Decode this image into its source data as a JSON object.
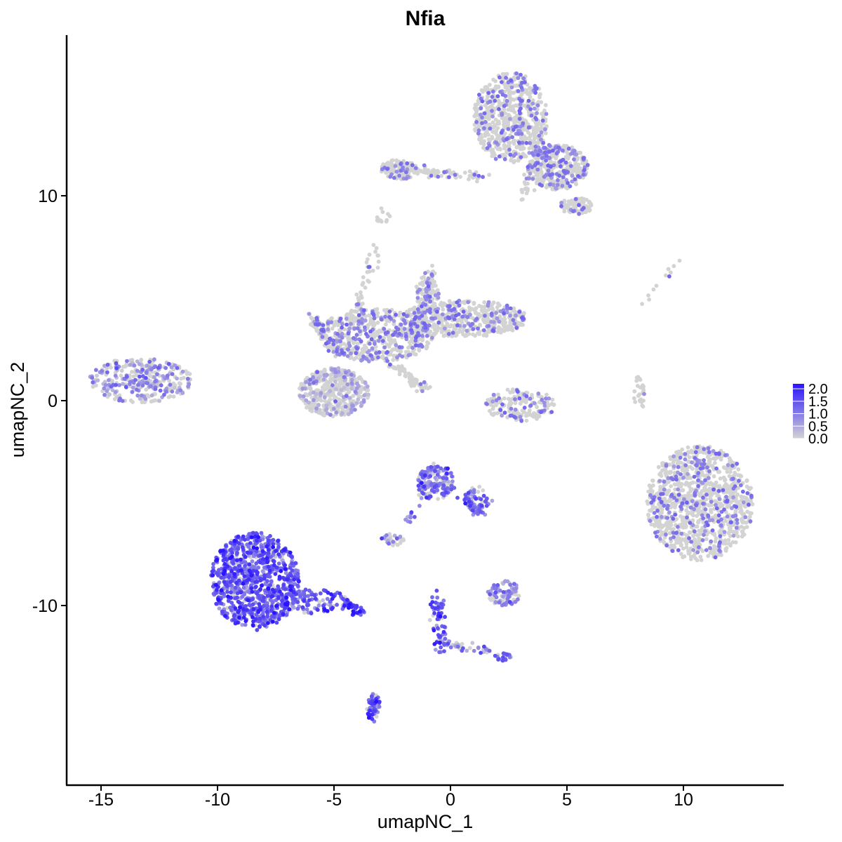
{
  "chart_data": {
    "type": "scatter",
    "title": "Nfia",
    "xlabel": "umapNC_1",
    "ylabel": "umapNC_2",
    "xlim": [
      -16.5,
      14.5
    ],
    "ylim": [
      -18.5,
      17.5
    ],
    "x_ticks": [
      -15,
      -10,
      -5,
      0,
      5,
      10
    ],
    "y_ticks": [
      -10,
      0,
      10
    ],
    "grid": false,
    "legend": {
      "position": "right",
      "title": "",
      "ticks": [
        2.0,
        1.5,
        1.0,
        0.5,
        0.0
      ],
      "tick_labels": [
        "2.0",
        "1.5",
        "1.0",
        "0.5",
        "0.0"
      ],
      "range": [
        0,
        2.2
      ],
      "color_low": "#d3d3d3",
      "color_high": "#2a14ff"
    },
    "clusters": [
      {
        "cx": -13.3,
        "cy": 1.0,
        "rx": 2.2,
        "ry": 1.1,
        "n": 320,
        "expr_mean": 0.55
      },
      {
        "cx": -8.4,
        "cy": -8.8,
        "rx": 1.9,
        "ry": 2.4,
        "n": 950,
        "expr_mean": 1.3
      },
      {
        "cx": -5.8,
        "cy": -9.8,
        "rx": 1.5,
        "ry": 0.6,
        "n": 110,
        "expr_mean": 1.2
      },
      {
        "cx": -3.3,
        "cy": -15.0,
        "rx": 0.3,
        "ry": 0.7,
        "n": 55,
        "expr_mean": 1.3
      },
      {
        "cx": -0.6,
        "cy": -4.0,
        "rx": 0.8,
        "ry": 0.9,
        "n": 150,
        "expr_mean": 0.9
      },
      {
        "cx": 1.2,
        "cy": -4.8,
        "rx": 0.6,
        "ry": 0.6,
        "n": 40,
        "expr_mean": 1.0
      },
      {
        "cx": -2.5,
        "cy": -6.8,
        "rx": 0.5,
        "ry": 0.3,
        "n": 30,
        "expr_mean": 0.6
      },
      {
        "cx": 2.3,
        "cy": -9.4,
        "rx": 0.7,
        "ry": 0.6,
        "n": 90,
        "expr_mean": 0.7
      },
      {
        "cx": -0.4,
        "cy": -11.0,
        "rx": 0.4,
        "ry": 1.3,
        "n": 55,
        "expr_mean": 1.2
      },
      {
        "cx": 2.2,
        "cy": -12.5,
        "rx": 0.4,
        "ry": 0.2,
        "n": 20,
        "expr_mean": 1.0
      },
      {
        "cx": 10.7,
        "cy": -5.0,
        "rx": 2.3,
        "ry": 2.8,
        "n": 1100,
        "expr_mean": 0.08
      },
      {
        "cx": -5.0,
        "cy": 0.4,
        "rx": 1.5,
        "ry": 1.2,
        "n": 450,
        "expr_mean": 0.25
      },
      {
        "cx": -3.2,
        "cy": 3.2,
        "rx": 2.5,
        "ry": 1.3,
        "n": 550,
        "expr_mean": 0.12
      },
      {
        "cx": 0.6,
        "cy": 4.0,
        "rx": 2.7,
        "ry": 0.9,
        "n": 500,
        "expr_mean": 0.1
      },
      {
        "cx": -1.0,
        "cy": 5.3,
        "rx": 0.5,
        "ry": 1.0,
        "n": 80,
        "expr_mean": 0.1
      },
      {
        "cx": 3.0,
        "cy": -0.2,
        "rx": 1.5,
        "ry": 0.8,
        "n": 180,
        "expr_mean": 0.1
      },
      {
        "cx": 2.6,
        "cy": 13.8,
        "rx": 1.6,
        "ry": 2.2,
        "n": 650,
        "expr_mean": 0.08
      },
      {
        "cx": 4.6,
        "cy": 11.4,
        "rx": 1.3,
        "ry": 1.1,
        "n": 380,
        "expr_mean": 0.12
      },
      {
        "cx": -2.2,
        "cy": 11.3,
        "rx": 0.8,
        "ry": 0.5,
        "n": 120,
        "expr_mean": 0.06
      },
      {
        "cx": 5.4,
        "cy": 9.5,
        "rx": 0.7,
        "ry": 0.4,
        "n": 90,
        "expr_mean": 0.05
      },
      {
        "cx": 8.1,
        "cy": 0.3,
        "rx": 0.25,
        "ry": 0.9,
        "n": 30,
        "expr_mean": 0.02
      },
      {
        "cx": -2.9,
        "cy": 9.0,
        "rx": 0.3,
        "ry": 0.4,
        "n": 12,
        "expr_mean": 0.02
      }
    ],
    "trails": [
      {
        "from": [
          -1.6,
          11.2
        ],
        "to": [
          1.5,
          10.9
        ],
        "n": 70,
        "expr_mean": 0.05
      },
      {
        "from": [
          -3.2,
          7.5
        ],
        "to": [
          -4.2,
          3.6
        ],
        "n": 50,
        "expr_mean": 0.08
      },
      {
        "from": [
          -2.6,
          1.8
        ],
        "to": [
          -1.1,
          0.6
        ],
        "n": 50,
        "expr_mean": 0.05
      },
      {
        "from": [
          -1.5,
          2.8
        ],
        "to": [
          -0.8,
          6.4
        ],
        "n": 60,
        "expr_mean": 0.1
      },
      {
        "from": [
          -6.0,
          4.2
        ],
        "to": [
          -4.8,
          2.2
        ],
        "n": 70,
        "expr_mean": 0.12
      },
      {
        "from": [
          -0.8,
          -3.2
        ],
        "to": [
          -1.8,
          -6.0
        ],
        "n": 25,
        "expr_mean": 0.9
      },
      {
        "from": [
          0.5,
          -4.6
        ],
        "to": [
          1.3,
          -5.6
        ],
        "n": 40,
        "expr_mean": 1.1
      },
      {
        "from": [
          -4.5,
          -9.9
        ],
        "to": [
          -3.8,
          -10.4
        ],
        "n": 45,
        "expr_mean": 1.6
      },
      {
        "from": [
          -0.4,
          -11.9
        ],
        "to": [
          1.8,
          -12.2
        ],
        "n": 35,
        "expr_mean": 0.9
      },
      {
        "from": [
          -0.8,
          -9.3
        ],
        "to": [
          -0.6,
          -10.5
        ],
        "n": 15,
        "expr_mean": 1.3
      },
      {
        "from": [
          8.0,
          4.5
        ],
        "to": [
          9.8,
          6.8
        ],
        "n": 12,
        "expr_mean": 0.02
      },
      {
        "from": [
          3.0,
          9.8
        ],
        "to": [
          4.1,
          12.5
        ],
        "n": 45,
        "expr_mean": 0.08
      }
    ]
  }
}
